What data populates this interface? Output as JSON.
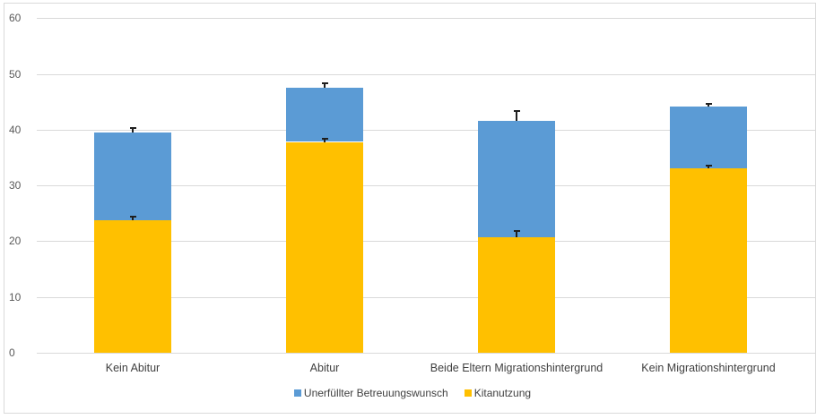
{
  "chart_data": {
    "type": "bar",
    "stacked": true,
    "title": "",
    "xlabel": "",
    "ylabel": "",
    "ylim": [
      0,
      60
    ],
    "yticks": [
      0,
      10,
      20,
      30,
      40,
      50,
      60
    ],
    "grid": true,
    "legend_position": "bottom",
    "categories": [
      "Kein Abitur",
      "Abitur",
      "Beide Eltern Migrationshintergrund",
      "Kein Migrationshintergrund"
    ],
    "series": [
      {
        "name": "Kitanutzung",
        "color": "#FFC000",
        "values": [
          23.8,
          37.8,
          20.7,
          33.1
        ],
        "error": [
          0.6,
          0.5,
          1.2,
          0.5
        ]
      },
      {
        "name": "Unerfüllter Betreuungswunsch",
        "color": "#5B9BD5",
        "values": [
          15.7,
          9.7,
          20.9,
          11.0
        ],
        "totals": [
          39.5,
          47.5,
          41.6,
          44.1
        ],
        "error": [
          0.8,
          0.8,
          1.7,
          0.5
        ]
      }
    ],
    "legend": [
      "Unerfüllter Betreuungswunsch",
      "Kitanutzung"
    ]
  }
}
